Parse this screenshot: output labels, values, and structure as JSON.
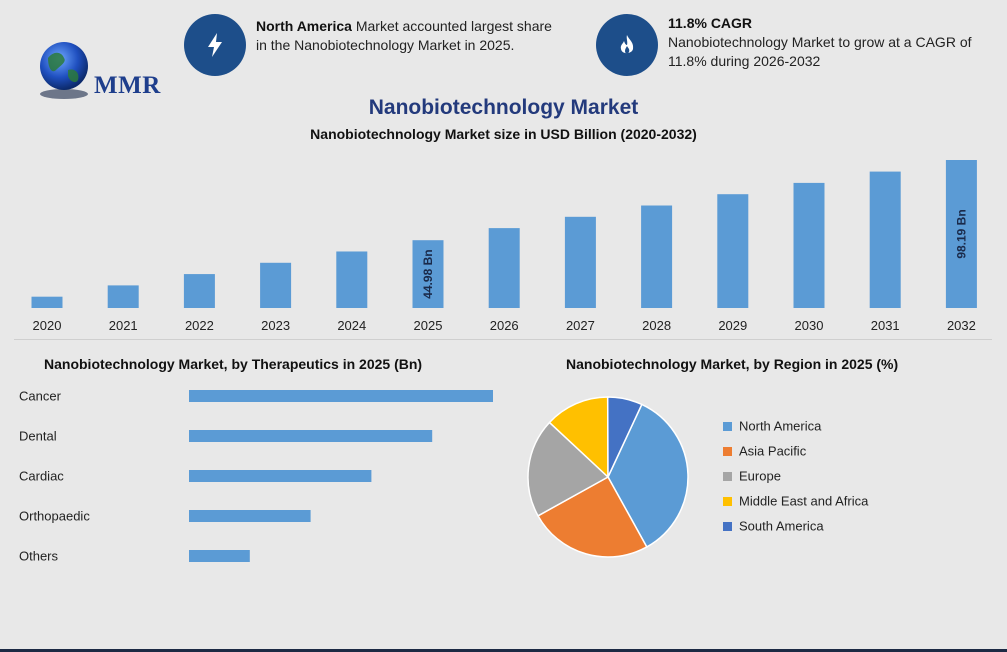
{
  "logo": {
    "text": "MMR"
  },
  "info_cards": [
    {
      "icon": "lightning-icon",
      "bold": "North America",
      "text": " Market accounted largest share in the Nanobiotechnology Market in 2025."
    },
    {
      "icon": "flame-icon",
      "bold": "11.8% CAGR",
      "text": "Nanobiotechnology Market to grow at a CAGR of 11.8% during 2026-2032"
    }
  ],
  "colors": {
    "bar": "#5b9bd5",
    "accent": "#1d4e8a",
    "title": "#233a7c"
  },
  "chart_data": [
    {
      "type": "bar",
      "title": "Nanobiotechnology Market",
      "subtitle": "Nanobiotechnology Market size in USD Billion (2020-2032)",
      "categories": [
        "2020",
        "2021",
        "2022",
        "2023",
        "2024",
        "2025",
        "2026",
        "2027",
        "2028",
        "2029",
        "2030",
        "2031",
        "2032"
      ],
      "values": [
        7.5,
        15.0,
        22.5,
        30.0,
        37.5,
        44.98,
        53.0,
        60.5,
        68.0,
        75.5,
        83.0,
        90.5,
        98.19
      ],
      "data_labels": {
        "5": "44.98 Bn",
        "12": "98.19 Bn"
      },
      "xlabel": "",
      "ylabel": ""
    },
    {
      "type": "bar",
      "orientation": "horizontal",
      "title": "Nanobiotechnology Market, by Therapeutics in 2025 (Bn)",
      "categories": [
        "Cancer",
        "Dental",
        "Cardiac",
        "Orthopaedic",
        "Others"
      ],
      "values": [
        5,
        4,
        3,
        2,
        1
      ]
    },
    {
      "type": "pie",
      "title": "Nanobiotechnology Market, by Region in 2025 (%)",
      "series": [
        {
          "name": "North America",
          "value": 35,
          "color": "#5b9bd5"
        },
        {
          "name": "Asia Pacific",
          "value": 25,
          "color": "#ed7d31"
        },
        {
          "name": "Europe",
          "value": 20,
          "color": "#a5a5a5"
        },
        {
          "name": "Middle East and Africa",
          "value": 13,
          "color": "#ffc000"
        },
        {
          "name": "South America",
          "value": 7,
          "color": "#4472c4"
        }
      ],
      "legend": "right"
    }
  ]
}
